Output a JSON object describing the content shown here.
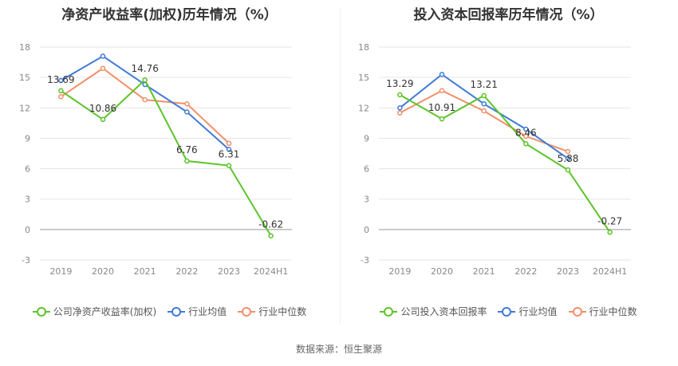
{
  "colors": {
    "company": "#5cc42a",
    "avg": "#3f7ad6",
    "median": "#f0906a"
  },
  "source_text": "数据来源：恒生聚源",
  "chart_data": [
    {
      "type": "line",
      "title": "净资产收益率(加权)历年情况（%）",
      "categories": [
        "2019",
        "2020",
        "2021",
        "2022",
        "2023",
        "2024H1"
      ],
      "yticks": [
        -3,
        0,
        3,
        6,
        9,
        12,
        15,
        18
      ],
      "ylim": [
        -3,
        18
      ],
      "grid": true,
      "legend_position": "bottom",
      "series": [
        {
          "key": "company",
          "name": "公司净资产收益率(加权)",
          "values": [
            13.69,
            10.86,
            14.76,
            6.76,
            6.31,
            -0.62
          ],
          "labels": [
            "13.69",
            "10.86",
            "14.76",
            "6.76",
            "6.31",
            "-0.62"
          ]
        },
        {
          "key": "avg",
          "name": "行业均值",
          "values": [
            14.7,
            17.1,
            14.3,
            11.6,
            7.9,
            null
          ]
        },
        {
          "key": "median",
          "name": "行业中位数",
          "values": [
            13.1,
            15.9,
            12.8,
            12.4,
            8.5,
            null
          ]
        }
      ]
    },
    {
      "type": "line",
      "title": "投入资本回报率历年情况（%）",
      "categories": [
        "2019",
        "2020",
        "2021",
        "2022",
        "2023",
        "2024H1"
      ],
      "yticks": [
        -3,
        0,
        3,
        6,
        9,
        12,
        15,
        18
      ],
      "ylim": [
        -3,
        18
      ],
      "grid": true,
      "legend_position": "bottom",
      "series": [
        {
          "key": "company",
          "name": "公司投入资本回报率",
          "values": [
            13.29,
            10.91,
            13.21,
            8.46,
            5.88,
            -0.27
          ],
          "labels": [
            "13.29",
            "10.91",
            "13.21",
            "8.46",
            "5.88",
            "-0.27"
          ]
        },
        {
          "key": "avg",
          "name": "行业均值",
          "values": [
            12.0,
            15.3,
            12.4,
            9.9,
            7.0,
            null
          ]
        },
        {
          "key": "median",
          "name": "行业中位数",
          "values": [
            11.5,
            13.7,
            11.7,
            9.2,
            7.7,
            null
          ]
        }
      ]
    }
  ]
}
